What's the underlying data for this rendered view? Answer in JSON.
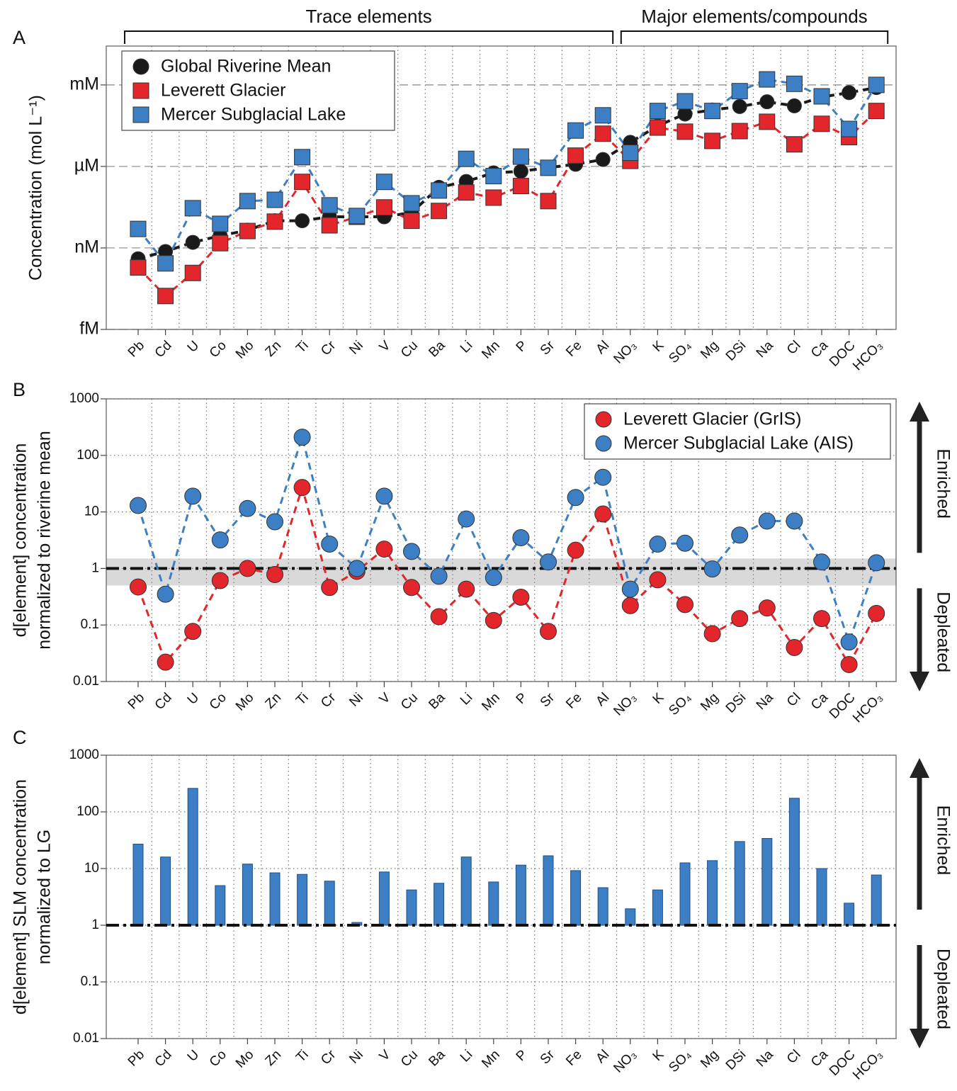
{
  "chart_data": [
    {
      "type": "line",
      "panel": "A",
      "yscale": "log",
      "grid": "dashed",
      "group_labels": [
        "Trace elements",
        "Major elements/compounds"
      ],
      "ylabel": "Concentration (mol L⁻¹)",
      "categories": [
        "Pb",
        "Cd",
        "U",
        "Co",
        "Mo",
        "Zn",
        "Ti",
        "Cr",
        "Ni",
        "V",
        "Cu",
        "Ba",
        "Li",
        "Mn",
        "P",
        "Sr",
        "Fe",
        "Al",
        "NO₃",
        "K",
        "SO₄",
        "Mg",
        "DSi",
        "Na",
        "Cl",
        "Ca",
        "DOC",
        "HCO₃"
      ],
      "ylim": [
        1e-12,
        0.027
      ],
      "yticks": [
        {
          "value": 1e-12,
          "label": "fM"
        },
        {
          "value": 1e-09,
          "label": "nM"
        },
        {
          "value": 1e-06,
          "label": "µM"
        },
        {
          "value": 0.001,
          "label": "mM"
        }
      ],
      "legend": "upper left",
      "series": [
        {
          "name": "Global Riverine Mean",
          "color": "#1a1a1a",
          "marker": "circle",
          "values": [
            4e-10,
            7.4e-10,
            1.6e-09,
            2.8e-09,
            4.5e-09,
            1e-08,
            1e-08,
            1.4e-08,
            1.4e-08,
            1.4e-08,
            2e-08,
            1.7e-07,
            2.8e-07,
            5.8e-07,
            6.6e-07,
            9e-07,
            1.2e-06,
            1.8e-06,
            7.7e-06,
            3.1e-05,
            8.5e-05,
            0.00012,
            0.00016,
            0.00024,
            0.00017,
            0.00036,
            0.00052,
            0.0008
          ]
        },
        {
          "name": "Leverett Glacier",
          "color": "#e2262b",
          "marker": "square",
          "values": [
            1.9e-10,
            1.7e-11,
            1.2e-10,
            1.5e-09,
            4.2e-09,
            9.3e-09,
            2.7e-07,
            6.8e-09,
            1.4e-08,
            3.1e-08,
            1e-08,
            2.3e-08,
            1.1e-07,
            7.1e-08,
            1.9e-07,
            5.3e-08,
            2.5e-06,
            1.6e-05,
            1.6e-06,
            2.7e-05,
            1.9e-05,
            8.7e-06,
            2e-05,
            4.4e-05,
            6.5e-06,
            3.7e-05,
            1.2e-05,
            0.00011
          ]
        },
        {
          "name": "Mercer Subglacial Lake",
          "color": "#3d7fc4",
          "marker": "square",
          "values": [
            5e-09,
            2.7e-10,
            2.9e-08,
            7.7e-09,
            5.3e-08,
            5.9e-08,
            2.2e-06,
            3.7e-08,
            1.5e-08,
            2.7e-07,
            4.4e-08,
            1.3e-07,
            1.9e-06,
            4.4e-07,
            2.3e-06,
            8.9e-07,
            2.1e-05,
            7.6e-05,
            3.2e-06,
            0.00011,
            0.00025,
            0.00011,
            0.00059,
            0.0016,
            0.0011,
            0.00038,
            2.4e-05,
            0.001
          ]
        }
      ]
    },
    {
      "type": "line",
      "panel": "B",
      "yscale": "log",
      "grid": "dotted",
      "ylabel": [
        "d[element] concentration",
        "normalized to riverine mean"
      ],
      "side_labels": [
        "Enriched",
        "Depleated"
      ],
      "categories": [
        "Pb",
        "Cd",
        "U",
        "Co",
        "Mo",
        "Zn",
        "Ti",
        "Cr",
        "Ni",
        "V",
        "Cu",
        "Ba",
        "Li",
        "Mn",
        "P",
        "Sr",
        "Fe",
        "Al",
        "NO₃",
        "K",
        "SO₄",
        "Mg",
        "DSi",
        "Na",
        "Cl",
        "Ca",
        "DOC",
        "HCO₃"
      ],
      "ylim": [
        0.01,
        1000
      ],
      "yticks": [
        0.01,
        0.1,
        1,
        10,
        100,
        1000
      ],
      "reference_line": 1,
      "band": [
        0.5,
        1.5
      ],
      "band_color": "#d9d9d9",
      "legend": "upper right",
      "series": [
        {
          "name": "Leverett Glacier (GrIS)",
          "color": "#e2262b",
          "marker": "circle",
          "values": [
            0.47,
            0.022,
            0.077,
            0.61,
            1.0,
            0.78,
            27,
            0.46,
            0.89,
            2.2,
            0.46,
            0.14,
            0.43,
            0.12,
            0.31,
            0.077,
            2.1,
            9.2,
            0.22,
            0.63,
            0.23,
            0.07,
            0.13,
            0.2,
            0.04,
            0.13,
            0.02,
            0.16
          ]
        },
        {
          "name": "Mercer Subglacial Lake (AIS)",
          "color": "#3d7fc4",
          "marker": "circle",
          "values": [
            13,
            0.35,
            19,
            3.2,
            11.5,
            6.7,
            210,
            2.7,
            1.0,
            19,
            2.0,
            0.73,
            7.5,
            0.69,
            3.5,
            1.3,
            18,
            41,
            0.43,
            2.7,
            2.8,
            0.98,
            3.9,
            6.9,
            6.9,
            1.3,
            0.05,
            1.26
          ]
        }
      ]
    },
    {
      "type": "bar",
      "panel": "C",
      "yscale": "log",
      "grid": "dotted",
      "ylabel": [
        "d[element] SLM concentration",
        "normalized to LG"
      ],
      "side_labels": [
        "Enriched",
        "Depleated"
      ],
      "categories": [
        "Pb",
        "Cd",
        "U",
        "Co",
        "Mo",
        "Zn",
        "Ti",
        "Cr",
        "Ni",
        "V",
        "Cu",
        "Ba",
        "Li",
        "Mn",
        "P",
        "Sr",
        "Fe",
        "Al",
        "NO₃",
        "K",
        "SO₄",
        "Mg",
        "DSi",
        "Na",
        "Cl",
        "Ca",
        "DOC",
        "HCO₃"
      ],
      "ylim": [
        0.01,
        1000
      ],
      "yticks": [
        0.01,
        0.1,
        1,
        10,
        100,
        1000
      ],
      "reference_line": 1,
      "color": "#3d7fc4",
      "values": [
        27,
        16,
        260,
        5,
        12,
        8.4,
        7.9,
        6,
        1.12,
        8.7,
        4.2,
        5.5,
        16,
        5.8,
        11.5,
        16.8,
        9.2,
        4.6,
        1.95,
        4.2,
        12.6,
        13.8,
        30,
        34,
        174,
        10,
        2.45,
        7.7
      ]
    }
  ]
}
